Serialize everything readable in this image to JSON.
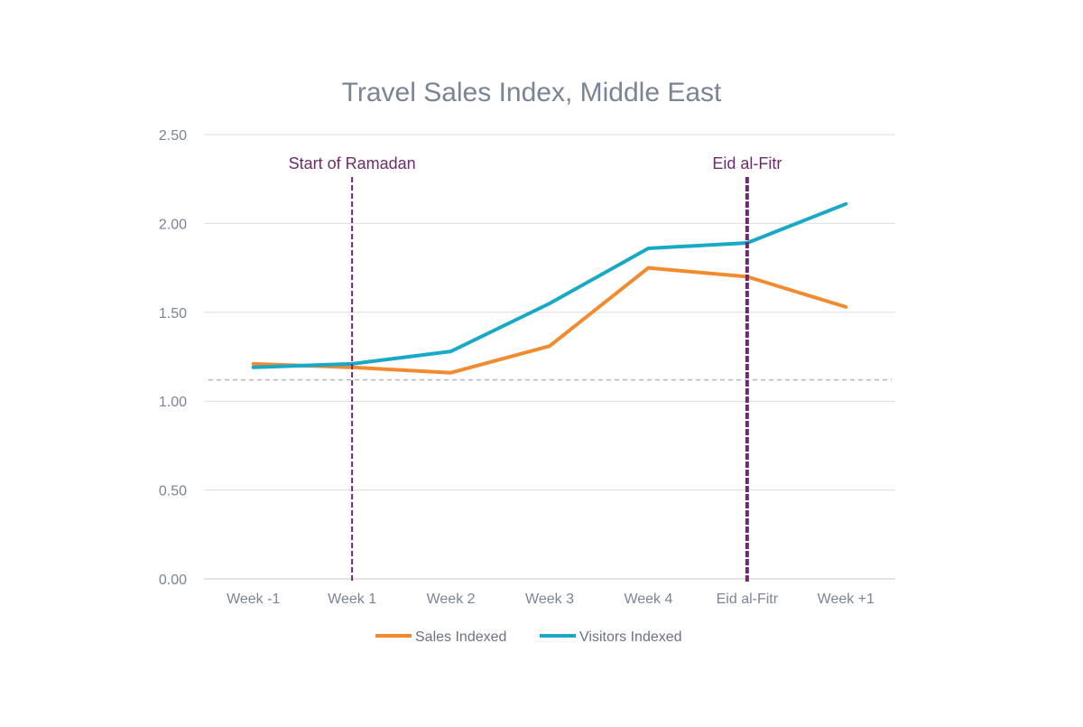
{
  "chart_data": {
    "type": "line",
    "title": "Travel Sales Index, Middle East",
    "categories": [
      "Week -1",
      "Week 1",
      "Week 2",
      "Week 3",
      "Week 4",
      "Eid al-Fitr",
      "Week +1"
    ],
    "series": [
      {
        "name": "Sales Indexed",
        "color": "#f28b30",
        "values": [
          1.21,
          1.19,
          1.16,
          1.31,
          1.75,
          1.7,
          1.53
        ]
      },
      {
        "name": "Visitors Indexed",
        "color": "#19a9c6",
        "values": [
          1.19,
          1.21,
          1.28,
          1.55,
          1.86,
          1.89,
          2.11
        ]
      }
    ],
    "ylim": [
      0,
      2.5
    ],
    "yticks": [
      "0.00",
      "0.50",
      "1.00",
      "1.50",
      "2.00",
      "2.50"
    ],
    "xlabel": "",
    "ylabel": "",
    "grid": true,
    "legend_position": "bottom",
    "reference_line": {
      "value": 1.12,
      "style": "dashed",
      "color": "#b8b8b8"
    },
    "annotations": [
      {
        "text": "Start of Ramadan",
        "category_index": 1,
        "color": "#6f2a6e"
      },
      {
        "text": "Eid al-Fitr",
        "category_index": 5,
        "color": "#6f2a6e"
      }
    ]
  }
}
